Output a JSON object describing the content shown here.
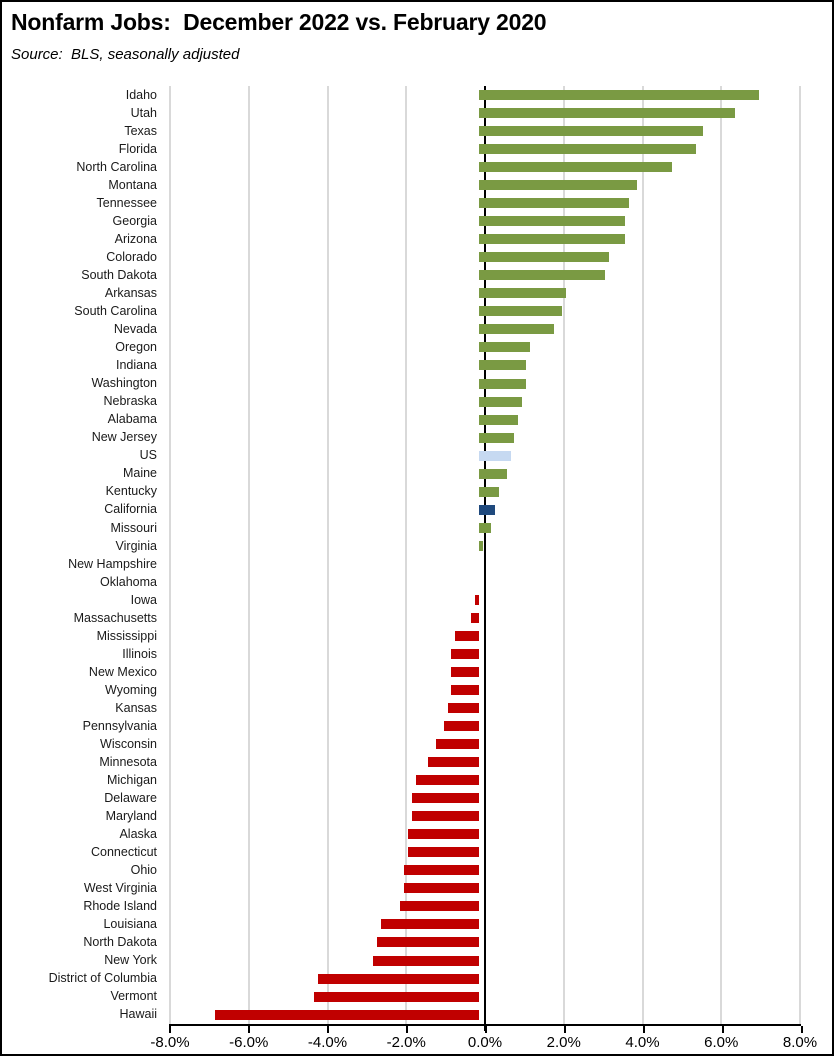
{
  "header": {
    "title": "Nonfarm Jobs:  December 2022 vs. February 2020",
    "source": "Source:  BLS, seasonally adjusted"
  },
  "colors": {
    "background": "#FFFFFF",
    "frame": "#000000",
    "gridline": "#D9D9D9",
    "axis": "#000000",
    "label_text": "#1A1A1A"
  },
  "chart_data": {
    "type": "bar",
    "orientation": "horizontal",
    "title": "Nonfarm Jobs:  December 2022 vs. February 2020",
    "subtitle": "Source:  BLS, seasonally adjusted",
    "xlabel": "",
    "ylabel": "",
    "xlim": [
      -8,
      8
    ],
    "grid": true,
    "x_tick_values": [
      -8,
      -6,
      -4,
      -2,
      0,
      2,
      4,
      6,
      8
    ],
    "x_tick_labels": [
      "-8.0%",
      "-6.0%",
      "-4.0%",
      "-2.0%",
      "0.0%",
      "2.0%",
      "4.0%",
      "6.0%",
      "8.0%"
    ],
    "bar_colors": {
      "positive": "#7A9A43",
      "negative": "#C00000"
    },
    "highlight_colors": {
      "US": "#C6D9F1",
      "California": "#1F497D"
    },
    "categories": [
      "Idaho",
      "Utah",
      "Texas",
      "Florida",
      "North Carolina",
      "Montana",
      "Tennessee",
      "Georgia",
      "Arizona",
      "Colorado",
      "South Dakota",
      "Arkansas",
      "South Carolina",
      "Nevada",
      "Oregon",
      "Indiana",
      "Washington",
      "Nebraska",
      "Alabama",
      "New Jersey",
      "US",
      "Maine",
      "Kentucky",
      "California",
      "Missouri",
      "Virginia",
      "New Hampshire",
      "Oklahoma",
      "Iowa",
      "Massachusetts",
      "Mississippi",
      "Illinois",
      "New Mexico",
      "Wyoming",
      "Kansas",
      "Pennsylvania",
      "Wisconsin",
      "Minnesota",
      "Michigan",
      "Delaware",
      "Maryland",
      "Alaska",
      "Connecticut",
      "Ohio",
      "West Virginia",
      "Rhode Island",
      "Louisiana",
      "North Dakota",
      "New York",
      "District of Columbia",
      "Vermont",
      "Hawaii"
    ],
    "values": [
      7.1,
      6.5,
      5.7,
      5.5,
      4.9,
      4.0,
      3.8,
      3.7,
      3.7,
      3.3,
      3.2,
      2.2,
      2.1,
      1.9,
      1.3,
      1.2,
      1.2,
      1.1,
      1.0,
      0.9,
      0.8,
      0.7,
      0.5,
      0.4,
      0.3,
      0.1,
      0.0,
      0.0,
      -0.1,
      -0.2,
      -0.6,
      -0.7,
      -0.7,
      -0.7,
      -0.8,
      -0.9,
      -1.1,
      -1.3,
      -1.6,
      -1.7,
      -1.7,
      -1.8,
      -1.8,
      -1.9,
      -1.9,
      -2.0,
      -2.5,
      -2.6,
      -2.7,
      -4.1,
      -4.2,
      -6.7
    ]
  }
}
